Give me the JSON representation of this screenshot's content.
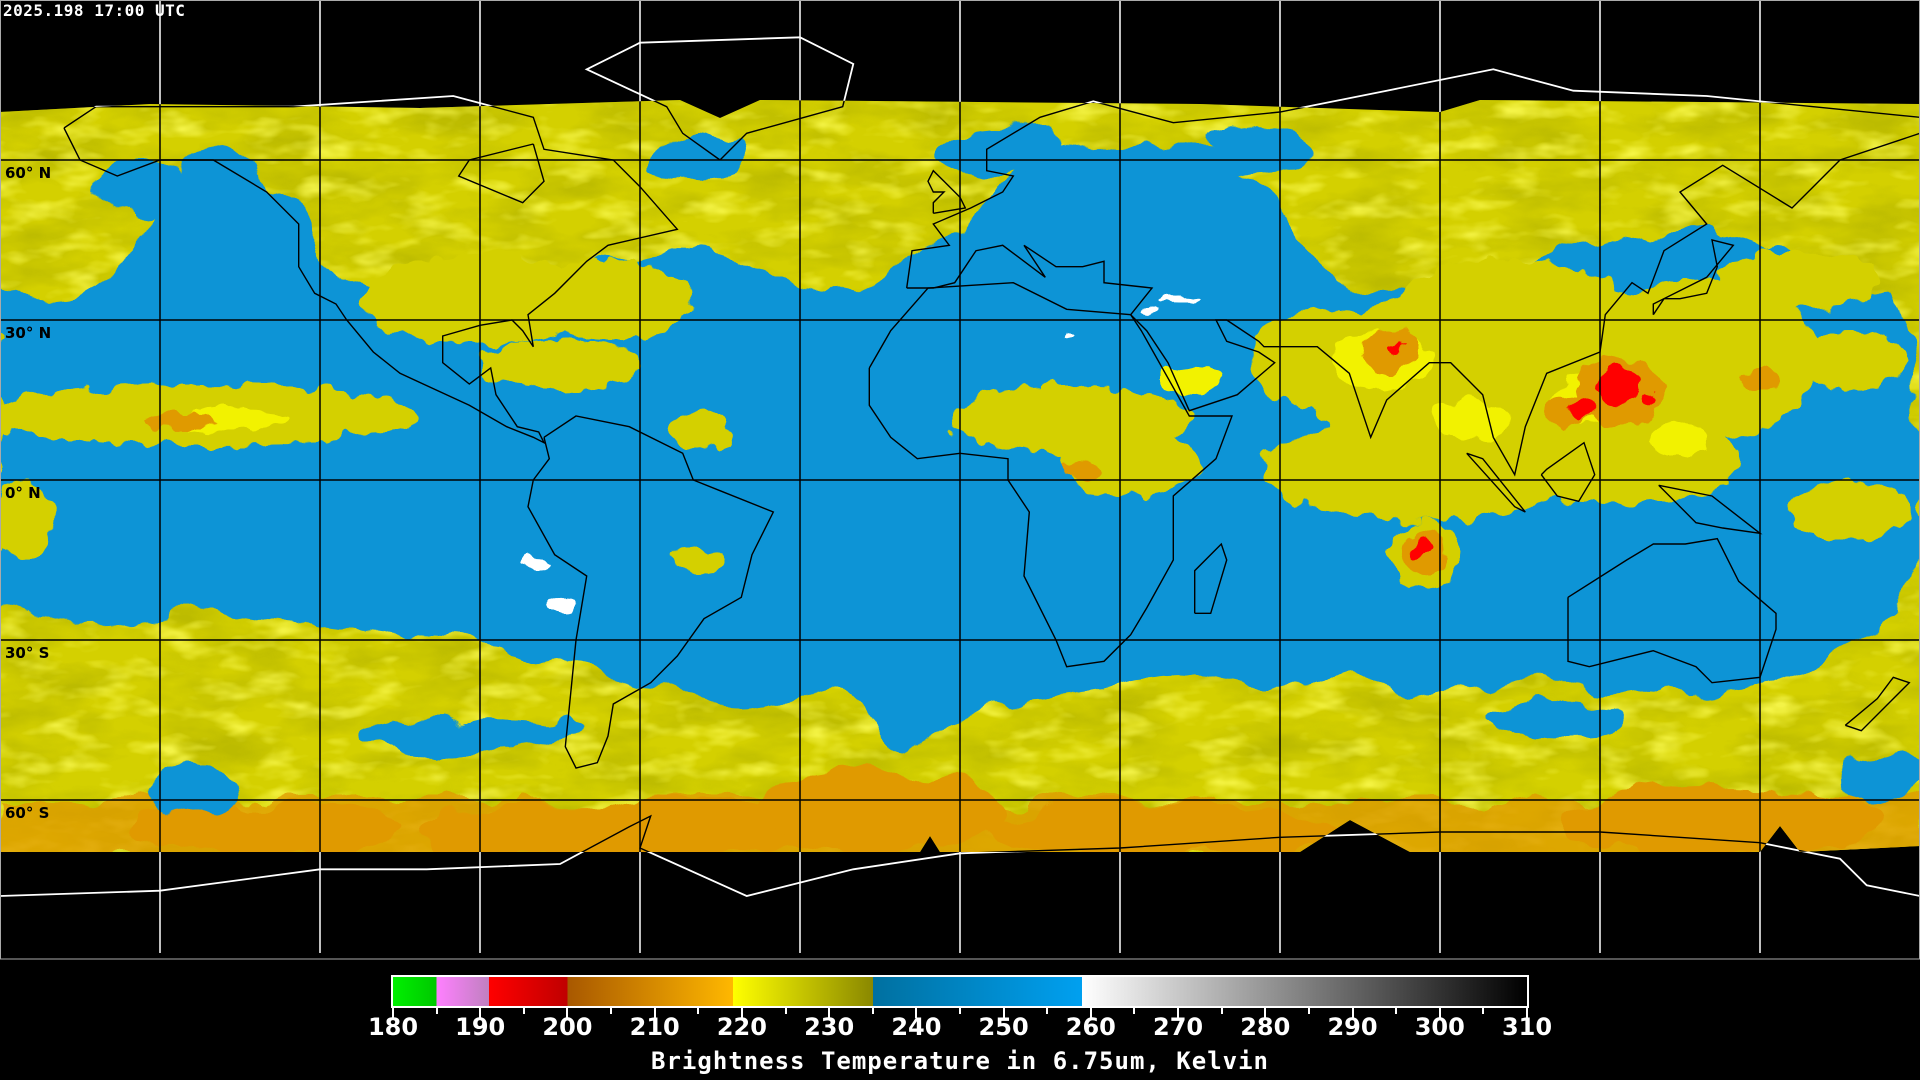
{
  "header": {
    "timestamp": "2025.198 17:00 UTC"
  },
  "map": {
    "lat_labels": [
      "60° N",
      "30° N",
      "0° N",
      "30° S",
      "60° S"
    ],
    "colors": {
      "background": "#000000",
      "water_vapor_dry": "#0a94d6",
      "cloud_mid": "#d4d000",
      "cloud_bright": "#f2f200",
      "cloud_cold": "#e09a00",
      "deep_convection": "#ff0000",
      "warm_surface": "#ffffff"
    }
  },
  "colorbar": {
    "title": "Brightness Temperature in 6.75um, Kelvin",
    "range": [
      180,
      310
    ],
    "tick_labels": [
      "180",
      "190",
      "200",
      "210",
      "220",
      "230",
      "240",
      "250",
      "260",
      "270",
      "280",
      "290",
      "300",
      "310"
    ],
    "segments": [
      {
        "from": 180,
        "to": 185,
        "colors": [
          "#00f000",
          "#00c800"
        ]
      },
      {
        "from": 185,
        "to": 191,
        "colors": [
          "#ff80ff",
          "#c080c0"
        ]
      },
      {
        "from": 191,
        "to": 200,
        "colors": [
          "#ff0000",
          "#c00000"
        ]
      },
      {
        "from": 200,
        "to": 219,
        "colors": [
          "#a85800",
          "#ffb800"
        ]
      },
      {
        "from": 219,
        "to": 235,
        "colors": [
          "#ffff00",
          "#8a8800"
        ]
      },
      {
        "from": 235,
        "to": 259,
        "colors": [
          "#0070a0",
          "#00a0f0"
        ]
      },
      {
        "from": 259,
        "to": 310,
        "colors": [
          "#ffffff",
          "#000000"
        ]
      }
    ]
  }
}
